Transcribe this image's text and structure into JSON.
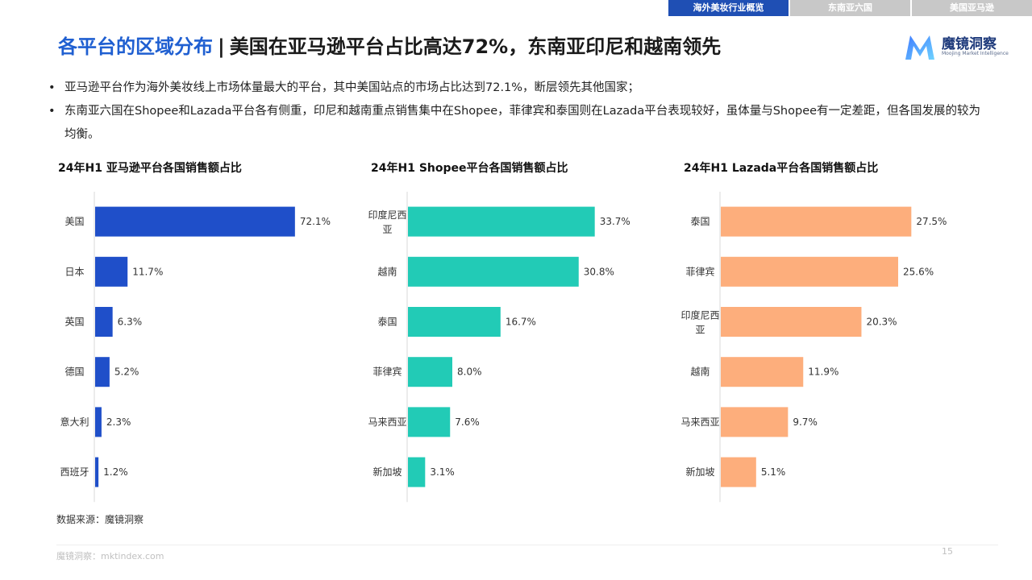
{
  "tabs": [
    "海外美妆行业概览",
    "东南亚六国",
    "美国亚马逊"
  ],
  "title": {
    "main": "各平台的区域分布",
    "separator": "|",
    "sub": "美国在亚马逊平台占比高达72%，东南亚印尼和越南领先"
  },
  "logo": {
    "name": "魔镜洞察",
    "subtitle": "Moojing Market Intelligence"
  },
  "bullets": [
    "亚马逊平台作为海外美妆线上市场体量最大的平台，其中美国站点的市场占比达到72.1%，断层领先其他国家；",
    "东南亚六国在Shopee和Lazada平台各有侧重，印尼和越南重点销售集中在Shopee，菲律宾和泰国则在Lazada平台表现较好，虽体量与Shopee有一定差距，但各国发展的较为均衡。"
  ],
  "colors": {
    "amazon": "#1f4fc9",
    "shopee": "#22cbb6",
    "lazada": "#fdae7c",
    "accent": "#1f5fd1",
    "tab_active": "#1f4fb4",
    "tab_inactive": "#c8c8c8"
  },
  "chart_data": [
    {
      "type": "bar",
      "orientation": "horizontal",
      "title": "24年H1 亚马逊平台各国销售额占比",
      "categories": [
        "美国",
        "日本",
        "英国",
        "德国",
        "意大利",
        "西班牙"
      ],
      "values": [
        72.1,
        11.7,
        6.3,
        5.2,
        2.3,
        1.2
      ],
      "labels": [
        "72.1%",
        "11.7%",
        "6.3%",
        "5.2%",
        "2.3%",
        "1.2%"
      ],
      "unit": "%",
      "xlim": [
        0,
        80
      ],
      "color": "#1f4fc9"
    },
    {
      "type": "bar",
      "orientation": "horizontal",
      "title": "24年H1 Shopee平台各国销售额占比",
      "categories": [
        "印度尼西亚",
        "越南",
        "泰国",
        "菲律宾",
        "马来西亚",
        "新加坡"
      ],
      "values": [
        33.7,
        30.8,
        16.7,
        8.0,
        7.6,
        3.1
      ],
      "labels": [
        "33.7%",
        "30.8%",
        "16.7%",
        "8.0%",
        "7.6%",
        "3.1%"
      ],
      "unit": "%",
      "xlim": [
        0,
        40
      ],
      "color": "#22cbb6"
    },
    {
      "type": "bar",
      "orientation": "horizontal",
      "title": "24年H1 Lazada平台各国销售额占比",
      "categories": [
        "泰国",
        "菲律宾",
        "印度尼西亚",
        "越南",
        "马来西亚",
        "新加坡"
      ],
      "values": [
        27.5,
        25.6,
        20.3,
        11.9,
        9.7,
        5.1
      ],
      "labels": [
        "27.5%",
        "25.6%",
        "20.3%",
        "11.9%",
        "9.7%",
        "5.1%"
      ],
      "unit": "%",
      "xlim": [
        0,
        32
      ],
      "color": "#fdae7c"
    }
  ],
  "source": "数据来源：魔镜洞察",
  "footer": "魔镜洞察：mktindex.com",
  "page_number": "15"
}
